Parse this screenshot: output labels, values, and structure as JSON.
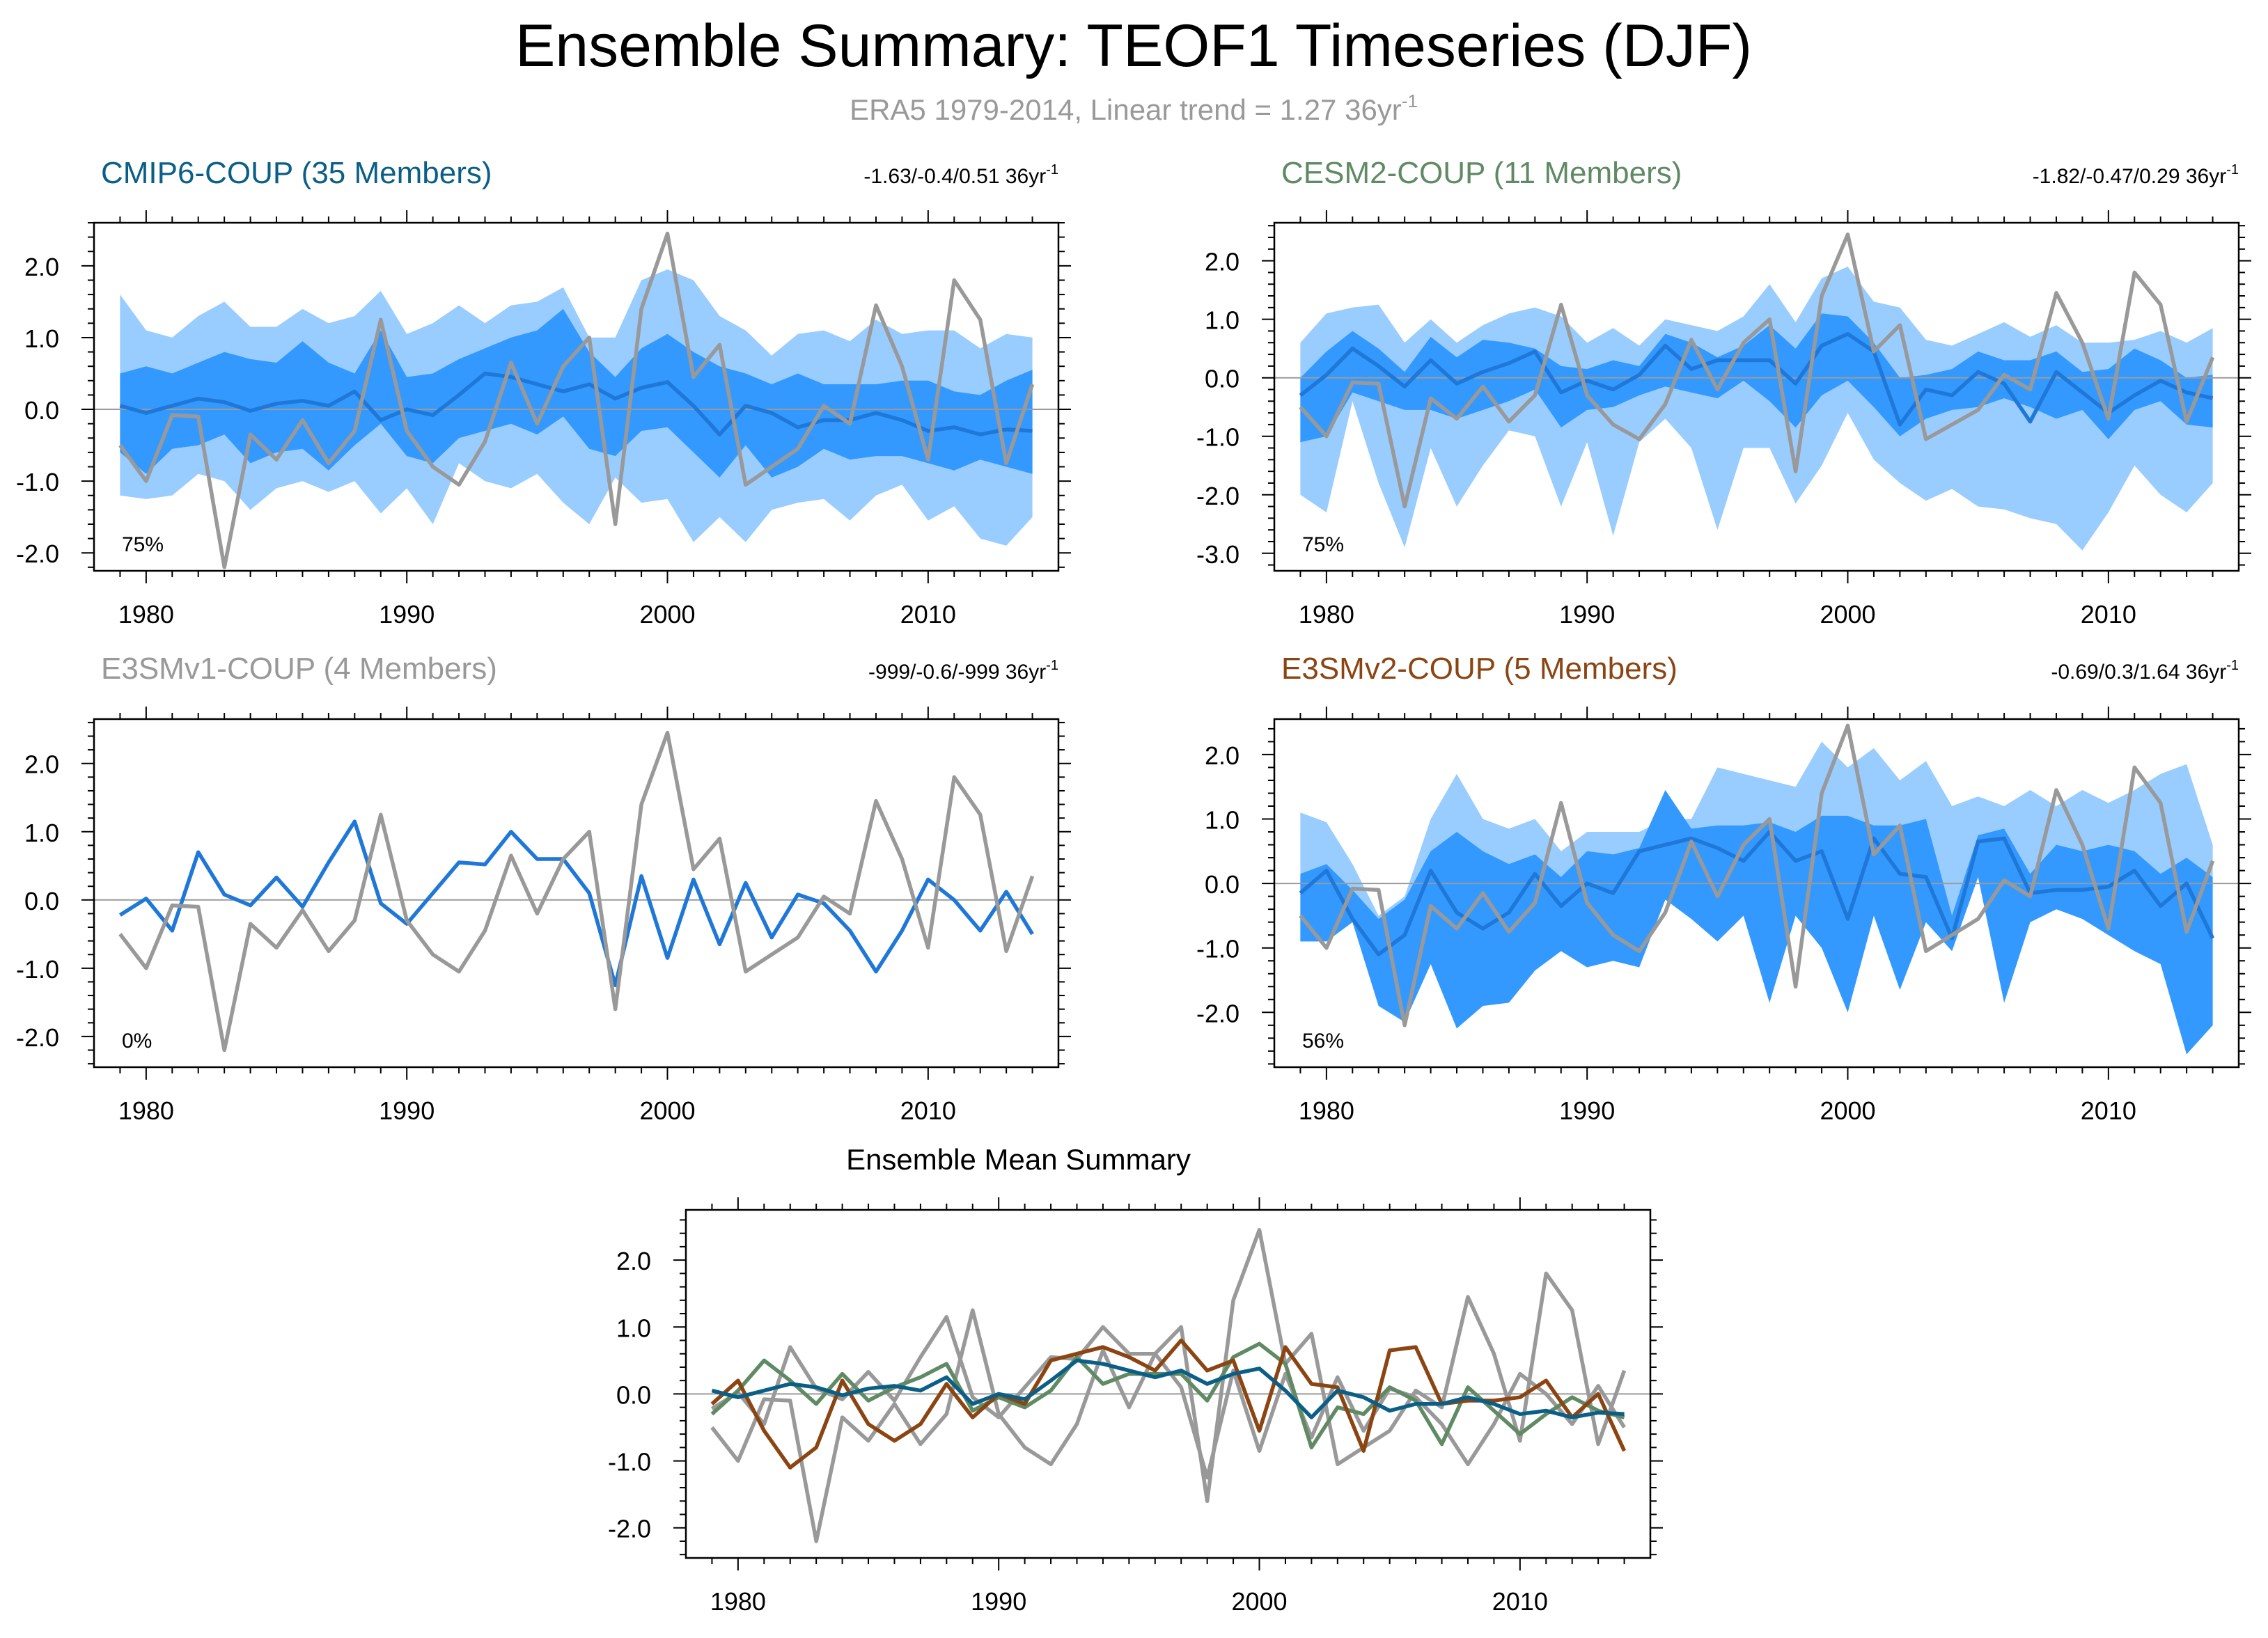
{
  "header": {
    "title": "Ensemble Summary: TEOF1 Timeseries (DJF)",
    "subtitle_main": "ERA5 1979-2014, Linear trend = 1.27 36yr",
    "subtitle_sup": "-1",
    "subtitle_color": "#999999"
  },
  "colors": {
    "obs": "#999999",
    "band_outer": "#99ccff",
    "band_inner": "#3399ff",
    "median": "#1f78d8",
    "cmip6": "#0b5f86",
    "cesm2": "#5f8a63",
    "e3smv1": "#999999",
    "e3smv2": "#8b4513"
  },
  "chart_data": [
    {
      "id": "cmip6",
      "type": "area",
      "title": "CMIP6-COUP (35 Members)",
      "title_color": "#0b5f86",
      "trend_main": "-1.63/-0.4/0.51 36yr",
      "trend_sup": "-1",
      "percent": "75%",
      "xlim": [
        1978,
        2015
      ],
      "ylim": [
        -2.25,
        2.6
      ],
      "yticks": [
        2.0,
        1.0,
        0.0,
        -1.0,
        -2.0
      ],
      "ytick_labels": [
        "2.0",
        "1.0",
        "0.0",
        "-1.0",
        "-2.0"
      ],
      "xticks": [
        1980,
        1990,
        2000,
        2010
      ],
      "xtick_labels": [
        "1980",
        "1990",
        "2000",
        "2010"
      ],
      "outer_upper": [
        1.6,
        1.1,
        1.0,
        1.3,
        1.5,
        1.15,
        1.15,
        1.4,
        1.2,
        1.3,
        1.65,
        1.05,
        1.2,
        1.45,
        1.2,
        1.45,
        1.5,
        1.7,
        1.0,
        1.0,
        1.8,
        1.95,
        1.8,
        1.3,
        1.1,
        0.75,
        1.05,
        1.1,
        0.95,
        1.25,
        1.05,
        1.1,
        1.1,
        0.85,
        1.05,
        1.0
      ],
      "inner_upper": [
        0.5,
        0.6,
        0.5,
        0.65,
        0.8,
        0.7,
        0.65,
        0.95,
        0.65,
        0.5,
        1.1,
        0.45,
        0.5,
        0.7,
        0.85,
        1.0,
        1.1,
        1.4,
        0.8,
        0.45,
        0.85,
        1.05,
        0.8,
        0.6,
        0.5,
        0.35,
        0.5,
        0.35,
        0.35,
        0.35,
        0.4,
        0.4,
        0.25,
        0.2,
        0.4,
        0.55
      ],
      "inner_lower": [
        -0.6,
        -0.9,
        -0.55,
        -0.5,
        -0.35,
        -0.75,
        -0.6,
        -0.55,
        -0.85,
        -0.5,
        -0.2,
        -0.65,
        -0.75,
        -0.4,
        -0.3,
        -0.2,
        -0.35,
        -0.1,
        -0.55,
        -0.65,
        -0.3,
        -0.25,
        -0.6,
        -0.95,
        -0.5,
        -0.95,
        -0.8,
        -0.55,
        -0.7,
        -0.65,
        -0.65,
        -0.75,
        -0.85,
        -0.7,
        -0.8,
        -0.9
      ],
      "outer_lower": [
        -1.2,
        -1.25,
        -1.2,
        -0.9,
        -1.0,
        -1.4,
        -1.1,
        -1.0,
        -1.15,
        -1.0,
        -1.45,
        -1.1,
        -1.6,
        -0.75,
        -1.0,
        -1.1,
        -0.9,
        -1.3,
        -1.6,
        -0.95,
        -1.3,
        -1.25,
        -1.85,
        -1.5,
        -1.85,
        -1.4,
        -1.3,
        -1.25,
        -1.55,
        -1.2,
        -1.05,
        -1.55,
        -1.35,
        -1.8,
        -1.9,
        -1.5
      ],
      "median": [
        0.05,
        -0.05,
        0.05,
        0.15,
        0.1,
        -0.02,
        0.08,
        0.12,
        0.05,
        0.25,
        -0.15,
        0.0,
        -0.08,
        0.2,
        0.5,
        0.45,
        0.35,
        0.25,
        0.35,
        0.15,
        0.3,
        0.38,
        0.05,
        -0.35,
        0.05,
        -0.05,
        -0.25,
        -0.15,
        -0.15,
        -0.05,
        -0.15,
        -0.3,
        -0.25,
        -0.35,
        -0.28,
        -0.3
      ],
      "line": null,
      "obs": [
        -0.5,
        -1.0,
        -0.08,
        -0.1,
        -2.2,
        -0.35,
        -0.7,
        -0.15,
        -0.75,
        -0.3,
        1.25,
        -0.3,
        -0.8,
        -1.05,
        -0.45,
        0.65,
        -0.2,
        0.6,
        1.0,
        -1.6,
        1.4,
        2.45,
        0.45,
        0.9,
        -1.05,
        -0.8,
        -0.55,
        0.05,
        -0.2,
        1.45,
        0.6,
        -0.7,
        1.8,
        1.25,
        -0.75,
        0.35
      ]
    },
    {
      "id": "cesm2",
      "type": "area",
      "title": "CESM2-COUP (11 Members)",
      "title_color": "#5f8a63",
      "trend_main": "-1.82/-0.47/0.29 36yr",
      "trend_sup": "-1",
      "percent": "75%",
      "xlim": [
        1978,
        2015
      ],
      "ylim": [
        -3.3,
        2.65
      ],
      "yticks": [
        2.0,
        1.0,
        0.0,
        -1.0,
        -2.0,
        -3.0
      ],
      "ytick_labels": [
        "2.0",
        "1.0",
        "0.0",
        "-1.0",
        "-2.0",
        "-3.0"
      ],
      "xticks": [
        1980,
        1990,
        2000,
        2010
      ],
      "xtick_labels": [
        "1980",
        "1990",
        "2000",
        "2010"
      ],
      "outer_upper": [
        0.6,
        1.1,
        1.2,
        1.25,
        0.6,
        1.0,
        0.6,
        0.9,
        1.1,
        1.2,
        1.05,
        0.6,
        0.85,
        0.55,
        1.0,
        0.9,
        0.8,
        1.05,
        1.6,
        0.95,
        1.7,
        1.9,
        1.3,
        1.2,
        0.65,
        0.55,
        0.75,
        0.95,
        0.7,
        0.9,
        0.6,
        0.6,
        0.65,
        0.8,
        0.6,
        0.85
      ],
      "inner_upper": [
        0.0,
        0.45,
        0.8,
        0.5,
        0.1,
        0.7,
        0.35,
        0.65,
        0.6,
        0.5,
        0.2,
        0.15,
        0.3,
        0.2,
        0.75,
        0.6,
        0.35,
        0.55,
        0.9,
        0.5,
        1.1,
        1.05,
        0.6,
        0.0,
        0.05,
        0.15,
        0.45,
        0.3,
        0.3,
        0.45,
        0.1,
        0.15,
        0.5,
        0.3,
        0.0,
        0.05
      ],
      "inner_lower": [
        -1.1,
        -1.0,
        -0.25,
        -0.4,
        -0.55,
        -0.55,
        -0.7,
        -0.55,
        -0.4,
        -0.2,
        -0.85,
        -0.55,
        -0.5,
        -0.3,
        -0.15,
        -0.25,
        -0.35,
        -0.05,
        -0.4,
        -0.85,
        -0.3,
        -0.05,
        -0.5,
        -1.0,
        -0.7,
        -0.55,
        -0.5,
        -0.35,
        -0.5,
        -0.7,
        -0.55,
        -1.05,
        -0.55,
        -0.4,
        -0.8,
        -0.85
      ],
      "outer_lower": [
        -2.0,
        -2.3,
        -0.4,
        -1.8,
        -2.9,
        -1.2,
        -2.2,
        -1.5,
        -0.9,
        -1.0,
        -2.2,
        -1.1,
        -2.7,
        -1.1,
        -0.7,
        -1.2,
        -2.6,
        -1.2,
        -1.2,
        -2.15,
        -1.5,
        -0.6,
        -1.4,
        -1.8,
        -2.1,
        -1.9,
        -2.2,
        -2.25,
        -2.4,
        -2.5,
        -2.95,
        -2.3,
        -1.5,
        -2.0,
        -2.3,
        -1.8
      ],
      "median": [
        -0.3,
        0.05,
        0.5,
        0.2,
        -0.15,
        0.3,
        -0.1,
        0.1,
        0.25,
        0.45,
        -0.25,
        -0.05,
        -0.2,
        0.05,
        0.55,
        0.15,
        0.3,
        0.3,
        0.3,
        -0.1,
        0.55,
        0.75,
        0.45,
        -0.8,
        -0.2,
        -0.3,
        0.1,
        -0.1,
        -0.75,
        0.1,
        -0.25,
        -0.6,
        -0.3,
        -0.05,
        -0.25,
        -0.35
      ],
      "line": null,
      "obs": [
        -0.5,
        -1.0,
        -0.08,
        -0.1,
        -2.2,
        -0.35,
        -0.7,
        -0.15,
        -0.75,
        -0.3,
        1.25,
        -0.3,
        -0.8,
        -1.05,
        -0.45,
        0.65,
        -0.2,
        0.6,
        1.0,
        -1.6,
        1.4,
        2.45,
        0.45,
        0.9,
        -1.05,
        -0.8,
        -0.55,
        0.05,
        -0.2,
        1.45,
        0.6,
        -0.7,
        1.8,
        1.25,
        -0.75,
        0.35
      ]
    },
    {
      "id": "e3smv1",
      "type": "line",
      "title": "E3SMv1-COUP (4 Members)",
      "title_color": "#999999",
      "trend_main": "-999/-0.6/-999 36yr",
      "trend_sup": "-1",
      "percent": "0%",
      "xlim": [
        1978,
        2015
      ],
      "ylim": [
        -2.45,
        2.65
      ],
      "yticks": [
        2.0,
        1.0,
        0.0,
        -1.0,
        -2.0
      ],
      "ytick_labels": [
        "2.0",
        "1.0",
        "0.0",
        "-1.0",
        "-2.0"
      ],
      "xticks": [
        1980,
        1990,
        2000,
        2010
      ],
      "xtick_labels": [
        "1980",
        "1990",
        "2000",
        "2010"
      ],
      "outer_upper": null,
      "inner_upper": null,
      "inner_lower": null,
      "outer_lower": null,
      "median": null,
      "line": [
        -0.22,
        0.02,
        -0.45,
        0.7,
        0.08,
        -0.08,
        0.33,
        -0.1,
        0.55,
        1.15,
        -0.05,
        -0.35,
        0.1,
        0.55,
        0.52,
        1.0,
        0.6,
        0.6,
        0.1,
        -1.25,
        0.35,
        -0.85,
        0.3,
        -0.65,
        0.25,
        -0.55,
        0.08,
        -0.05,
        -0.45,
        -1.05,
        -0.45,
        0.3,
        0.0,
        -0.45,
        0.12,
        -0.5
      ],
      "obs": [
        -0.5,
        -1.0,
        -0.08,
        -0.1,
        -2.2,
        -0.35,
        -0.7,
        -0.15,
        -0.75,
        -0.3,
        1.25,
        -0.3,
        -0.8,
        -1.05,
        -0.45,
        0.65,
        -0.2,
        0.6,
        1.0,
        -1.6,
        1.4,
        2.45,
        0.45,
        0.9,
        -1.05,
        -0.8,
        -0.55,
        0.05,
        -0.2,
        1.45,
        0.6,
        -0.7,
        1.8,
        1.25,
        -0.75,
        0.35
      ]
    },
    {
      "id": "e3smv2",
      "type": "area",
      "title": "E3SMv2-COUP (5 Members)",
      "title_color": "#8b4513",
      "trend_main": "-0.69/0.3/1.64 36yr",
      "trend_sup": "-1",
      "percent": "56%",
      "xlim": [
        1978,
        2015
      ],
      "ylim": [
        -2.85,
        2.55
      ],
      "yticks": [
        2.0,
        1.0,
        0.0,
        -1.0,
        -2.0
      ],
      "ytick_labels": [
        "2.0",
        "1.0",
        "0.0",
        "-1.0",
        "-2.0"
      ],
      "xticks": [
        1980,
        1990,
        2000,
        2010
      ],
      "xtick_labels": [
        "1980",
        "1990",
        "2000",
        "2010"
      ],
      "outer_upper": [
        1.1,
        0.95,
        0.3,
        -0.5,
        -0.2,
        1.0,
        1.7,
        1.0,
        0.85,
        1.0,
        0.5,
        0.8,
        0.8,
        0.8,
        1.0,
        1.0,
        1.8,
        1.7,
        1.6,
        1.5,
        2.2,
        1.8,
        2.1,
        1.6,
        1.9,
        1.2,
        1.35,
        1.2,
        1.45,
        1.2,
        1.45,
        1.25,
        1.45,
        1.7,
        1.85,
        0.6
      ],
      "inner_upper": [
        0.15,
        0.3,
        -0.1,
        -0.55,
        -0.25,
        0.5,
        0.8,
        0.5,
        0.3,
        0.45,
        0.1,
        0.5,
        0.45,
        0.55,
        1.45,
        0.85,
        0.9,
        0.9,
        0.95,
        0.8,
        1.05,
        1.05,
        0.9,
        0.9,
        1.0,
        -0.5,
        0.75,
        0.85,
        0.15,
        0.6,
        0.5,
        0.6,
        0.5,
        0.15,
        0.4,
        0.1
      ],
      "inner_lower": [
        -0.9,
        -0.9,
        -0.6,
        -1.9,
        -2.15,
        -1.25,
        -2.25,
        -1.9,
        -1.85,
        -1.35,
        -1.05,
        -1.3,
        -1.2,
        -1.3,
        -0.25,
        -0.55,
        -0.9,
        -0.5,
        -1.85,
        -0.5,
        -1.0,
        -2.0,
        -0.5,
        -1.65,
        -0.6,
        -1.05,
        0.1,
        -1.85,
        -0.6,
        -0.4,
        -0.55,
        -0.8,
        -1.05,
        -1.25,
        -2.65,
        -2.2
      ],
      "outer_lower": null,
      "median": [
        -0.15,
        0.2,
        -0.55,
        -1.1,
        -0.8,
        0.2,
        -0.45,
        -0.7,
        -0.45,
        0.15,
        -0.35,
        0.0,
        -0.15,
        0.5,
        0.6,
        0.7,
        0.55,
        0.35,
        0.8,
        0.35,
        0.5,
        -0.55,
        0.7,
        0.15,
        0.1,
        -0.85,
        0.65,
        0.7,
        -0.15,
        -0.1,
        -0.1,
        -0.05,
        0.2,
        -0.35,
        0.0,
        -0.85
      ],
      "line": null,
      "obs": [
        -0.5,
        -1.0,
        -0.08,
        -0.1,
        -2.2,
        -0.35,
        -0.7,
        -0.15,
        -0.75,
        -0.3,
        1.25,
        -0.3,
        -0.8,
        -1.05,
        -0.45,
        0.65,
        -0.2,
        0.6,
        1.0,
        -1.6,
        1.4,
        2.45,
        0.45,
        0.9,
        -1.05,
        -0.8,
        -0.55,
        0.05,
        -0.2,
        1.45,
        0.6,
        -0.7,
        1.8,
        1.25,
        -0.75,
        0.35
      ]
    },
    {
      "id": "summary",
      "type": "line",
      "title": "Ensemble Mean Summary",
      "xlim": [
        1978,
        2015
      ],
      "ylim": [
        -2.45,
        2.75
      ],
      "yticks": [
        2.0,
        1.0,
        0.0,
        -1.0,
        -2.0
      ],
      "ytick_labels": [
        "2.0",
        "1.0",
        "0.0",
        "-1.0",
        "-2.0"
      ],
      "xticks": [
        1980,
        1990,
        2000,
        2010
      ],
      "xtick_labels": [
        "1980",
        "1990",
        "2000",
        "2010"
      ],
      "series": [
        {
          "name": "ERA5",
          "color": "#999999",
          "values": [
            -0.5,
            -1.0,
            -0.08,
            -0.1,
            -2.2,
            -0.35,
            -0.7,
            -0.15,
            -0.75,
            -0.3,
            1.25,
            -0.3,
            -0.8,
            -1.05,
            -0.45,
            0.65,
            -0.2,
            0.6,
            1.0,
            -1.6,
            1.4,
            2.45,
            0.45,
            0.9,
            -1.05,
            -0.8,
            -0.55,
            0.05,
            -0.2,
            1.45,
            0.6,
            -0.7,
            1.8,
            1.25,
            -0.75,
            0.35
          ]
        },
        {
          "name": "E3SMv1-COUP",
          "color": "#999999",
          "values": [
            -0.22,
            0.02,
            -0.45,
            0.7,
            0.08,
            -0.08,
            0.33,
            -0.1,
            0.55,
            1.15,
            -0.05,
            -0.35,
            0.1,
            0.55,
            0.52,
            1.0,
            0.6,
            0.6,
            0.1,
            -1.25,
            0.35,
            -0.85,
            0.3,
            -0.65,
            0.25,
            -0.55,
            0.08,
            -0.05,
            -0.45,
            -1.05,
            -0.45,
            0.3,
            0.0,
            -0.45,
            0.12,
            -0.5
          ]
        },
        {
          "name": "CESM2-COUP",
          "color": "#5f8a63",
          "values": [
            -0.3,
            0.05,
            0.5,
            0.2,
            -0.15,
            0.3,
            -0.1,
            0.1,
            0.25,
            0.45,
            -0.25,
            -0.05,
            -0.2,
            0.05,
            0.55,
            0.15,
            0.3,
            0.3,
            0.3,
            -0.1,
            0.55,
            0.75,
            0.45,
            -0.8,
            -0.2,
            -0.3,
            0.1,
            -0.1,
            -0.75,
            0.1,
            -0.25,
            -0.6,
            -0.3,
            -0.05,
            -0.25,
            -0.35
          ]
        },
        {
          "name": "E3SMv2-COUP",
          "color": "#8b4513",
          "values": [
            -0.15,
            0.2,
            -0.55,
            -1.1,
            -0.8,
            0.2,
            -0.45,
            -0.7,
            -0.45,
            0.15,
            -0.35,
            0.0,
            -0.15,
            0.5,
            0.6,
            0.7,
            0.55,
            0.35,
            0.8,
            0.35,
            0.5,
            -0.55,
            0.7,
            0.15,
            0.1,
            -0.85,
            0.65,
            0.7,
            -0.15,
            -0.1,
            -0.1,
            -0.05,
            0.2,
            -0.35,
            0.0,
            -0.85
          ]
        },
        {
          "name": "CMIP6-COUP",
          "color": "#0b5f86",
          "values": [
            0.05,
            -0.05,
            0.05,
            0.15,
            0.1,
            -0.02,
            0.08,
            0.12,
            0.05,
            0.25,
            -0.15,
            0.0,
            -0.08,
            0.2,
            0.5,
            0.45,
            0.35,
            0.25,
            0.35,
            0.15,
            0.3,
            0.38,
            0.05,
            -0.35,
            0.05,
            -0.05,
            -0.25,
            -0.15,
            -0.15,
            -0.05,
            -0.15,
            -0.3,
            -0.25,
            -0.35,
            -0.28,
            -0.3
          ]
        }
      ]
    }
  ]
}
